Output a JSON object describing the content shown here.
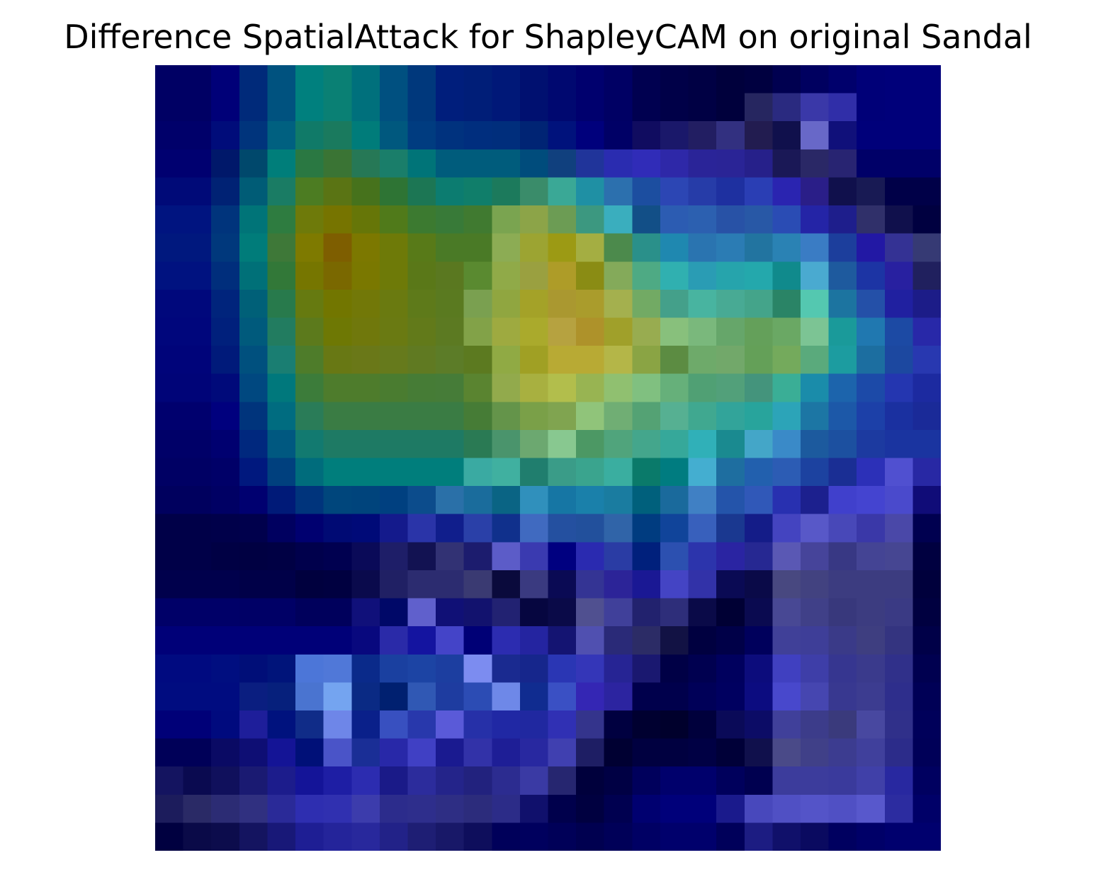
{
  "chart_data": {
    "type": "heatmap",
    "title": "Difference SpatialAttack for ShapleyCAM on original Sandal",
    "xlabel": "",
    "ylabel": "",
    "axes_visible": false,
    "grid": false,
    "legend": "none",
    "rows": 28,
    "cols": 28,
    "cell_colors": [
      [
        "#000064",
        "#000064",
        "#000078",
        "#002a7a",
        "#00527f",
        "#00807e",
        "#0a8074",
        "#00707c",
        "#005080",
        "#00387c",
        "#001e7c",
        "#001e78",
        "#001878",
        "#001070",
        "#000870",
        "#00006e",
        "#000064",
        "#000050",
        "#000048",
        "#000044",
        "#00003c",
        "#000040",
        "#000050",
        "#000060",
        "#00006c",
        "#000078",
        "#00007a",
        "#00007a"
      ],
      [
        "#000064",
        "#000064",
        "#000078",
        "#002a7a",
        "#00527f",
        "#00807e",
        "#0a8074",
        "#00707c",
        "#005080",
        "#00387c",
        "#001e7c",
        "#001e78",
        "#001878",
        "#001070",
        "#000870",
        "#00006e",
        "#000064",
        "#000050",
        "#000048",
        "#000044",
        "#00003c",
        "#262660",
        "#2a2a80",
        "#3a38a8",
        "#302ea8",
        "#000078",
        "#00007a",
        "#00007a"
      ],
      [
        "#00006a",
        "#00006a",
        "#000c7a",
        "#00347c",
        "#006080",
        "#107a68",
        "#1a7a5e",
        "#007c7a",
        "#00587e",
        "#003c80",
        "#00327e",
        "#002e7e",
        "#002e7c",
        "#002474",
        "#00127c",
        "#00007c",
        "#000066",
        "#100c60",
        "#1a186a",
        "#221e62",
        "#323080",
        "#221c50",
        "#10104c",
        "#6868c8",
        "#10107a",
        "#00007a",
        "#00007a",
        "#00007a"
      ],
      [
        "#000070",
        "#000070",
        "#00186a",
        "#00486c",
        "#007e7a",
        "#2a7842",
        "#3a7434",
        "#267856",
        "#1a7e6a",
        "#007478",
        "#005c7c",
        "#005c7c",
        "#005c7c",
        "#004c7c",
        "#10407e",
        "#20349a",
        "#2a2cb0",
        "#302cb8",
        "#2e28a8",
        "#2a2498",
        "#2a2496",
        "#26208a",
        "#1a1856",
        "#2a2866",
        "#282472",
        "#000068",
        "#000068",
        "#000068"
      ],
      [
        "#000a78",
        "#000a78",
        "#002274",
        "#005c76",
        "#1a7c64",
        "#4c7c22",
        "#5a7414",
        "#46721c",
        "#2e7434",
        "#1c7654",
        "#0c7c70",
        "#107e6a",
        "#1c7a5c",
        "#3a8c6a",
        "#3aa896",
        "#1f90a4",
        "#2c70ae",
        "#1c4ea0",
        "#2c46b4",
        "#263ca8",
        "#1e30a0",
        "#2a3eb4",
        "#2a24b0",
        "#2a1e88",
        "#10104c",
        "#181a54",
        "#000048",
        "#000048"
      ],
      [
        "#001480",
        "#001480",
        "#00347c",
        "#007478",
        "#2e7c40",
        "#6e7a0a",
        "#767400",
        "#667608",
        "#507a1a",
        "#3c7a30",
        "#387a38",
        "#407a30",
        "#7aa450",
        "#8ca448",
        "#6c9c54",
        "#3c9880",
        "#3aaebe",
        "#124f87",
        "#2c5cb2",
        "#2c60b0",
        "#2852a6",
        "#2858a6",
        "#2a4cb4",
        "#2424a6",
        "#1e1e8c",
        "#30306a",
        "#10104c",
        "#000040"
      ],
      [
        "#00187e",
        "#00187e",
        "#00387c",
        "#007c7a",
        "#3e7838",
        "#7e7a00",
        "#7e5e00",
        "#7c7800",
        "#6e7a08",
        "#587a18",
        "#4a7a26",
        "#4a7a26",
        "#8cac54",
        "#9ca432",
        "#9c9a14",
        "#a4ae42",
        "#4c8a4c",
        "#2a908a",
        "#1f88b0",
        "#2a74b0",
        "#2b7cb4",
        "#2274a0",
        "#2a82b4",
        "#3a7cc4",
        "#1c3e9c",
        "#2218a4",
        "#343294",
        "#363a74"
      ],
      [
        "#001280",
        "#001280",
        "#002e7c",
        "#007078",
        "#327838",
        "#767600",
        "#7a6800",
        "#7a7800",
        "#6e7a08",
        "#5a7818",
        "#5a7820",
        "#5a8a30",
        "#90aa48",
        "#9aa040",
        "#ae9c28",
        "#8a8c14",
        "#84aa5a",
        "#4eaa84",
        "#30b0b0",
        "#2a9cb4",
        "#26a4ac",
        "#24a8ac",
        "#108a8c",
        "#4aaad0",
        "#1e5a9e",
        "#1c34a4",
        "#2820a0",
        "#20205e"
      ],
      [
        "#00087c",
        "#00087c",
        "#00247c",
        "#006078",
        "#287a4c",
        "#667a10",
        "#727600",
        "#727808",
        "#6a7a10",
        "#5e7a1a",
        "#5a7a20",
        "#7aa050",
        "#90a640",
        "#a4a228",
        "#aa9830",
        "#aa9c2c",
        "#a4b04e",
        "#72aa64",
        "#44a08a",
        "#48b4a0",
        "#48aa94",
        "#44a48a",
        "#2a8466",
        "#54c8b0",
        "#1c74a0",
        "#2450a8",
        "#2020a0",
        "#1c1c88"
      ],
      [
        "#00067c",
        "#00067c",
        "#00207c",
        "#005a7c",
        "#227c60",
        "#5c7a1c",
        "#6e7804",
        "#70780c",
        "#6a7a12",
        "#627a1a",
        "#5c7a22",
        "#82a248",
        "#9eaa40",
        "#aaaa2c",
        "#b6a240",
        "#ae922a",
        "#a0a02a",
        "#98ac50",
        "#88c07c",
        "#7ab87c",
        "#66a66a",
        "#64a05a",
        "#6aa864",
        "#7cc494",
        "#1a9a9a",
        "#2078b0",
        "#1c4aa4",
        "#2828a8"
      ],
      [
        "#00047a",
        "#00047a",
        "#001a7a",
        "#00507e",
        "#1a7e72",
        "#4e7c2a",
        "#687814",
        "#6a7818",
        "#667a1c",
        "#607a22",
        "#5c7c28",
        "#5c7a20",
        "#90aa44",
        "#a0a024",
        "#b8aa34",
        "#b8aa34",
        "#b4b648",
        "#8aa444",
        "#5c8c42",
        "#6eaa6a",
        "#72a86a",
        "#64a058",
        "#74aa5c",
        "#5aaa7c",
        "#1c9ca0",
        "#1c6ea0",
        "#1c48a0",
        "#2838b0"
      ],
      [
        "#000478",
        "#000478",
        "#000a7a",
        "#004880",
        "#00787c",
        "#3c7c3a",
        "#4e7c2c",
        "#4e7c2c",
        "#4a7c30",
        "#467c36",
        "#467c38",
        "#5a8430",
        "#92aa4c",
        "#a8b040",
        "#b2be4c",
        "#98b452",
        "#90c070",
        "#80c080",
        "#66b07a",
        "#50a074",
        "#52a07a",
        "#44947c",
        "#3aae96",
        "#1a8caa",
        "#1c64ac",
        "#1c4aa8",
        "#2436b0",
        "#1c2aa0"
      ],
      [
        "#00006e",
        "#00006e",
        "#00007e",
        "#00347c",
        "#006c80",
        "#2a7c58",
        "#3a7c44",
        "#3a7c44",
        "#3a7c44",
        "#3a7c44",
        "#3a7c44",
        "#467c36",
        "#64944a",
        "#7aa048",
        "#80a450",
        "#90c47a",
        "#70ae74",
        "#54a274",
        "#56b092",
        "#40a890",
        "#32a49a",
        "#28a49c",
        "#2ca4b8",
        "#1c76a4",
        "#1c58a8",
        "#1c40a8",
        "#1a30a0",
        "#1a2a98"
      ],
      [
        "#000068",
        "#000068",
        "#000070",
        "#00287e",
        "#005880",
        "#127a70",
        "#1e7a64",
        "#1e7a64",
        "#1e7a64",
        "#1e7a64",
        "#1e7a64",
        "#2a7a54",
        "#4a946c",
        "#6ca870",
        "#88c890",
        "#4c9864",
        "#50a47c",
        "#44a68c",
        "#36a89a",
        "#30b0b8",
        "#1a8a90",
        "#44a6c8",
        "#3a8ac8",
        "#1c5a9e",
        "#1c50a0",
        "#1c3aa0",
        "#1a34a0",
        "#1a34a0"
      ],
      [
        "#000064",
        "#000064",
        "#000068",
        "#00187e",
        "#00407e",
        "#006c7c",
        "#007e7c",
        "#007e7c",
        "#007e7c",
        "#007e7c",
        "#007e7c",
        "#3aaaa2",
        "#40b0a0",
        "#207e6e",
        "#3a9c88",
        "#3aa48e",
        "#3aaea0",
        "#0a7a6a",
        "#007c80",
        "#44aed0",
        "#1e6ea0",
        "#2260ae",
        "#2c5cb4",
        "#1c42a0",
        "#1a2e94",
        "#2c30b8",
        "#5050d0",
        "#2828a4"
      ],
      [
        "#00005e",
        "#00005e",
        "#000064",
        "#000070",
        "#001a78",
        "#00347c",
        "#00467c",
        "#00447c",
        "#004080",
        "#0c4c8c",
        "#2a70a8",
        "#1a6c9c",
        "#0a6484",
        "#3090bc",
        "#1676a4",
        "#1a80aa",
        "#1a7ca0",
        "#00607c",
        "#1a6a9c",
        "#4080c4",
        "#2454aa",
        "#3058b8",
        "#2830b0",
        "#1c208e",
        "#4040cc",
        "#4444d0",
        "#4a4acc",
        "#100c78"
      ],
      [
        "#000048",
        "#000048",
        "#00004a",
        "#00004c",
        "#000060",
        "#000070",
        "#000a74",
        "#000a78",
        "#141a8c",
        "#2a34a8",
        "#101e8c",
        "#2a40a8",
        "#10308c",
        "#406ac0",
        "#2450a0",
        "#22509c",
        "#3064a8",
        "#003c80",
        "#10449a",
        "#3860bc",
        "#1a3890",
        "#141c88",
        "#4444c0",
        "#5858c8",
        "#4848b8",
        "#3a38a8",
        "#4a48a8",
        "#000050"
      ],
      [
        "#000048",
        "#000048",
        "#000044",
        "#000042",
        "#000044",
        "#00004c",
        "#000050",
        "#0a0a58",
        "#1e1e68",
        "#121252",
        "#323274",
        "#1c1c6e",
        "#5c5cc8",
        "#3a3ab0",
        "#000080",
        "#2a2ab0",
        "#2a3ca4",
        "#00207c",
        "#2c50b0",
        "#2c34ac",
        "#2a24a2",
        "#262892",
        "#5a58b4",
        "#46449a",
        "#383884",
        "#444494",
        "#464692",
        "#000040"
      ],
      [
        "#00004c",
        "#00004c",
        "#00004c",
        "#000048",
        "#000048",
        "#00003e",
        "#000040",
        "#0a0a4c",
        "#202064",
        "#2c2c70",
        "#2c2c70",
        "#3a3a72",
        "#0a0a3c",
        "#3a3a80",
        "#0a0a54",
        "#343494",
        "#2c2498",
        "#1a1894",
        "#4444c4",
        "#3232a8",
        "#0a0a54",
        "#0a0a48",
        "#484880",
        "#424280",
        "#3c3c80",
        "#3c3c80",
        "#3c3c80",
        "#00003c"
      ],
      [
        "#000068",
        "#000068",
        "#000068",
        "#000066",
        "#000066",
        "#00005c",
        "#00005c",
        "#10107a",
        "#000868",
        "#6060cc",
        "#101076",
        "#12126e",
        "#222272",
        "#060640",
        "#0a0a48",
        "#505090",
        "#40409a",
        "#22226e",
        "#2e2e7a",
        "#0a0a48",
        "#000034",
        "#0a0a50",
        "#484894",
        "#404088",
        "#38387c",
        "#3c3c80",
        "#3a3a84",
        "#000040"
      ],
      [
        "#000078",
        "#000078",
        "#000078",
        "#000078",
        "#000078",
        "#000078",
        "#000078",
        "#08087e",
        "#2a2aa8",
        "#1414a0",
        "#4444c8",
        "#000076",
        "#2c2cb0",
        "#2424a0",
        "#141472",
        "#5050b0",
        "#2a2a78",
        "#2c2c66",
        "#121244",
        "#000040",
        "#000048",
        "#00005c",
        "#404098",
        "#3e3e98",
        "#3a3a88",
        "#3e3e80",
        "#343480",
        "#000048"
      ],
      [
        "#000a80",
        "#000a80",
        "#000e80",
        "#000e78",
        "#00147a",
        "#4c76d8",
        "#5078d8",
        "#0a2a8a",
        "#1a40a0",
        "#1c44a4",
        "#1c3ea0",
        "#7c8cf0",
        "#1a2a90",
        "#16268c",
        "#2a36b4",
        "#3436b8",
        "#262494",
        "#1a1870",
        "#000046",
        "#000050",
        "#00005e",
        "#0c0c7c",
        "#4040c0",
        "#3e3ea8",
        "#363690",
        "#3a3a8c",
        "#30308a",
        "#000050"
      ],
      [
        "#000c80",
        "#000c80",
        "#000c80",
        "#0a1e80",
        "#06207c",
        "#4a74d0",
        "#74a4f0",
        "#0a2a84",
        "#002070",
        "#3058b4",
        "#1e3ca0",
        "#2c4cb4",
        "#6e88e8",
        "#102c90",
        "#3a50c4",
        "#3426b4",
        "#2c24a0",
        "#00004c",
        "#00004c",
        "#000058",
        "#000060",
        "#0c0c80",
        "#4848cc",
        "#4646b0",
        "#383890",
        "#3c3c90",
        "#2e2e8c",
        "#000056"
      ],
      [
        "#000078",
        "#000078",
        "#000a7e",
        "#1e1e9a",
        "#00127e",
        "#102c88",
        "#6e86e8",
        "#0a208a",
        "#3850c0",
        "#2838ac",
        "#5a5ad8",
        "#2630a8",
        "#2028a4",
        "#2028a0",
        "#3030b4",
        "#34348c",
        "#000040",
        "#000030",
        "#00002c",
        "#00003c",
        "#0a0a58",
        "#0c0c66",
        "#40409a",
        "#3c3c8a",
        "#3a3a7c",
        "#4848a0",
        "#30308a",
        "#00005a"
      ],
      [
        "#000058",
        "#000058",
        "#0a0a64",
        "#0e0e74",
        "#141496",
        "#001078",
        "#4a54c8",
        "#1a2e96",
        "#2828a8",
        "#4040c4",
        "#1a1a90",
        "#3232a8",
        "#1e1e96",
        "#2828a0",
        "#4040b0",
        "#1e1e64",
        "#000032",
        "#000040",
        "#000040",
        "#000044",
        "#000038",
        "#10104c",
        "#4a4a88",
        "#404088",
        "#3c3c90",
        "#40409c",
        "#2c2c8a",
        "#000058"
      ],
      [
        "#141460",
        "#0a0a50",
        "#10105c",
        "#1a1a72",
        "#1c1c8c",
        "#141498",
        "#1e1ea4",
        "#2c2cb0",
        "#1a1a88",
        "#2c2c9c",
        "#24248a",
        "#22227e",
        "#2c2c90",
        "#3a3aa4",
        "#262670",
        "#00003c",
        "#000044",
        "#00005c",
        "#00006c",
        "#00006c",
        "#00005c",
        "#000050",
        "#3c3c9c",
        "#3c3c9c",
        "#3a3a9c",
        "#4040a8",
        "#2828a0",
        "#000060"
      ],
      [
        "#1c1c5c",
        "#2a2a66",
        "#2c2c74",
        "#303080",
        "#2a2a98",
        "#2e2eb0",
        "#3030b0",
        "#3c3cac",
        "#2c2c8c",
        "#2e2e8c",
        "#2e2e84",
        "#2c2c7c",
        "#2c2c88",
        "#10106c",
        "#00004c",
        "#000040",
        "#000050",
        "#000070",
        "#00007a",
        "#00007a",
        "#1a1a8c",
        "#4848bc",
        "#5050c4",
        "#5454c8",
        "#5050c4",
        "#5858cc",
        "#2c2ca0",
        "#000068"
      ],
      [
        "#000040",
        "#0a0a48",
        "#0c0c4c",
        "#141460",
        "#181878",
        "#1e1e94",
        "#24249a",
        "#28289c",
        "#222288",
        "#1e1e74",
        "#181868",
        "#0e0e5c",
        "#00005a",
        "#00005e",
        "#000058",
        "#000050",
        "#000058",
        "#000064",
        "#00006c",
        "#00006c",
        "#00005a",
        "#1c1c82",
        "#10106a",
        "#0a0a60",
        "#000060",
        "#000068",
        "#00006e",
        "#00006e"
      ]
    ]
  }
}
